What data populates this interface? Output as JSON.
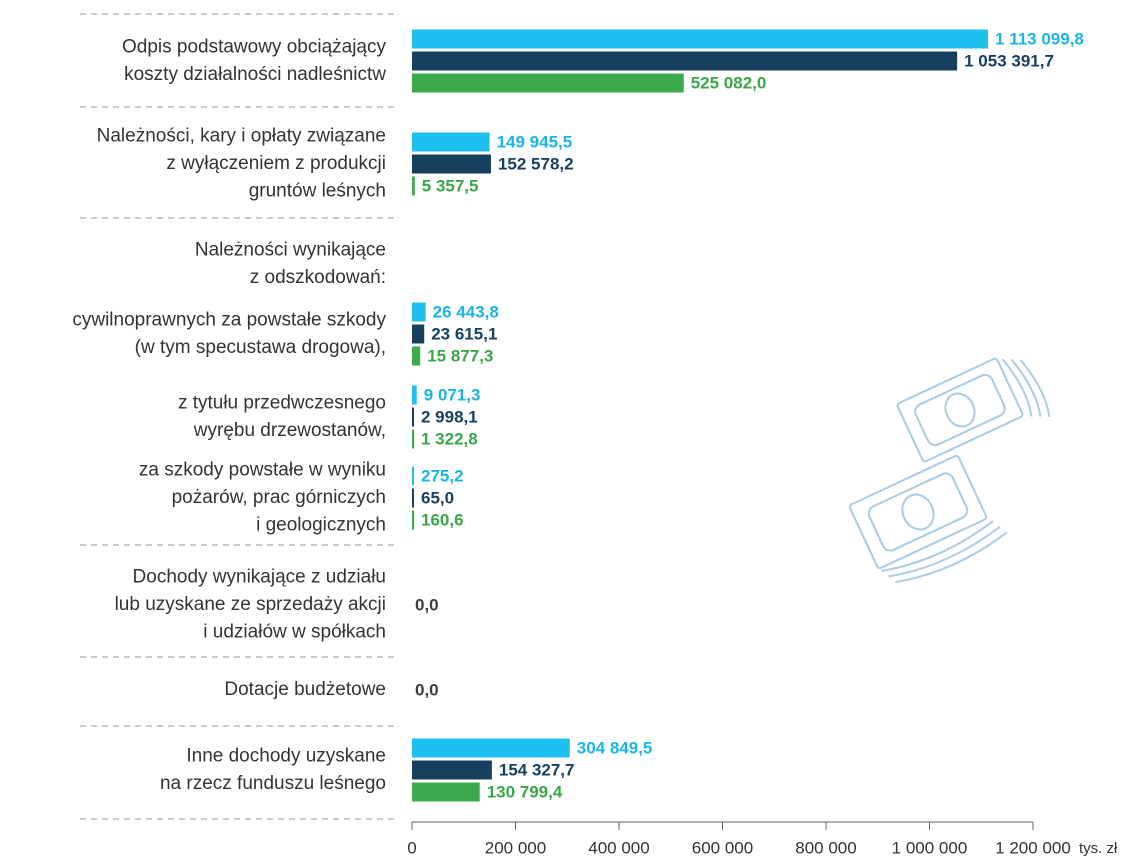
{
  "chart_data": {
    "type": "bar",
    "orientation": "horizontal",
    "categories": [
      [
        "Odpis podstawowy obciążający",
        "koszty działalności nadleśnictw"
      ],
      [
        "Należności, kary i opłaty związane",
        "z wyłączeniem z produkcji",
        "gruntów leśnych"
      ],
      [
        "Należności wynikające",
        "z odszkodowań:"
      ],
      [
        "cywilnoprawnych za powstałe szkody",
        "(w tym specustawa drogowa),"
      ],
      [
        "z tytułu przedwczesnego",
        "wyrębu drzewostanów,"
      ],
      [
        "za szkody powstałe w wyniku",
        "pożarów, prac górniczych",
        "i geologicznych"
      ],
      [
        "Dochody wynikające z udziału",
        "lub uzyskane ze sprzedaży akcji",
        "i udziałów w spółkach"
      ],
      [
        "Dotacje budżetowe"
      ],
      [
        "Inne dochody uzyskane",
        "na rzecz funduszu leśnego"
      ]
    ],
    "series": [
      {
        "color": "#1ec0f0",
        "label_color": "#1ab4e8",
        "values": [
          1113099.8,
          149945.5,
          null,
          26443.8,
          9071.3,
          275.2,
          0,
          0,
          304849.5
        ],
        "value_labels": [
          "1 113 099,8",
          "149 945,5",
          null,
          "26 443,8",
          "9 071,3",
          "275,2",
          "0,0",
          "0,0",
          "304 849,5"
        ]
      },
      {
        "color": "#17405f",
        "label_color": "#173f5f",
        "values": [
          1053391.7,
          152578.2,
          null,
          23615.1,
          2998.1,
          65.0,
          null,
          null,
          154327.7
        ],
        "value_labels": [
          "1 053 391,7",
          "152 578,2",
          null,
          "23 615,1",
          "2 998,1",
          "65,0",
          null,
          null,
          "154 327,7"
        ]
      },
      {
        "color": "#3aaa4a",
        "label_color": "#3aa648",
        "values": [
          525082.0,
          5357.5,
          null,
          15877.3,
          1322.8,
          160.6,
          null,
          null,
          130799.4
        ],
        "value_labels": [
          "525 082,0",
          "5 357,5",
          null,
          "15 877,3",
          "1 322,8",
          "160,6",
          null,
          null,
          "130 799,4"
        ]
      }
    ],
    "zero_label_color": "#3d3d3d",
    "xlim": [
      0,
      1200000
    ],
    "xticks": [
      0,
      {
        "value": 200000,
        "label": "200 000"
      },
      {
        "value": 400000,
        "label": "400 000"
      },
      {
        "value": 600000,
        "label": "600 000"
      },
      {
        "value": 800000,
        "label": "800 000"
      },
      {
        "value": 1000000,
        "label": "1 000 000"
      },
      {
        "value": 1200000,
        "label": "1 200 000"
      }
    ],
    "x_unit": "tys. zł"
  }
}
